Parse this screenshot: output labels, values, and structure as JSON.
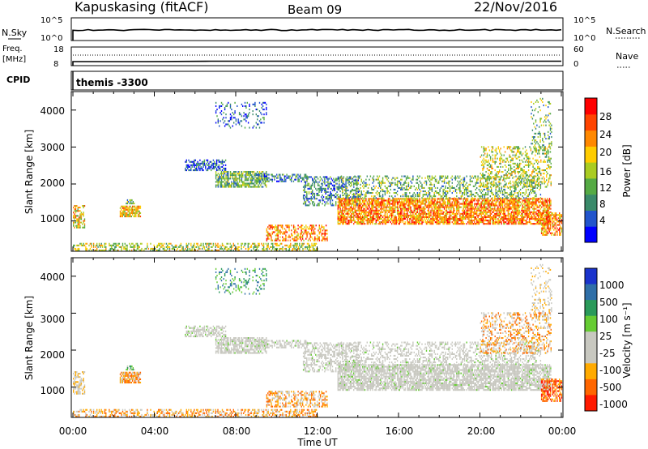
{
  "header": {
    "station": "Kapuskasing (fitACF)",
    "beam": "Beam 09",
    "date": "22/Nov/2016"
  },
  "strip_panels": {
    "nsky_label": "N.Sky",
    "nsearch_label": "N.Search",
    "nsky_ticks": [
      "10^5",
      "10^0"
    ],
    "nsearch_ticks": [
      "10^5",
      "10^0"
    ],
    "freq_label_1": "Freq.",
    "freq_label_2": "[MHz]",
    "freq_ticks": [
      "18",
      "8"
    ],
    "nave_label": "Nave",
    "nave_ticks": [
      "60",
      "0"
    ],
    "cpid_label": "CPID",
    "cpid_value": "themis -3300"
  },
  "colors": {
    "power_scale": [
      "#0000ff",
      "#2255cc",
      "#3a8a6a",
      "#55aa44",
      "#aacc22",
      "#ffcc00",
      "#ff8800",
      "#ff4400",
      "#ff0000"
    ],
    "velocity_scale": [
      "#1a33cc",
      "#2f6fa8",
      "#2a9a5a",
      "#66cc33",
      "#c8c8c0",
      "#c8c8c0",
      "#ffaa00",
      "#ff6600",
      "#ff1a00"
    ],
    "ground_scatter": "#c8c8c0"
  },
  "chart_data": [
    {
      "type": "heatmap",
      "name": "power",
      "ylabel": "Slant Range [km]",
      "yticks": [
        "1000",
        "2000",
        "3000",
        "4000"
      ],
      "ylim": [
        180,
        4500
      ],
      "xlim_hours": [
        0,
        24
      ],
      "colorbar_label": "Power [dB]",
      "colorbar_ticks": [
        "4",
        "8",
        "12",
        "16",
        "20",
        "24",
        "28"
      ],
      "colorbar_range": [
        0,
        32
      ]
    },
    {
      "type": "heatmap",
      "name": "velocity",
      "ylabel": "Slant Range [km]",
      "yticks": [
        "1000",
        "2000",
        "3000",
        "4000"
      ],
      "ylim": [
        180,
        4500
      ],
      "xlim_hours": [
        0,
        24
      ],
      "xticks": [
        "00:00",
        "04:00",
        "08:00",
        "12:00",
        "16:00",
        "20:00",
        "00:00"
      ],
      "xlabel": "Time UT",
      "colorbar_label": "Velocity [m s⁻¹]",
      "colorbar_ticks": [
        "1000",
        "500",
        "100",
        "25",
        "-25",
        "-100",
        "-500",
        "-1000"
      ]
    }
  ]
}
